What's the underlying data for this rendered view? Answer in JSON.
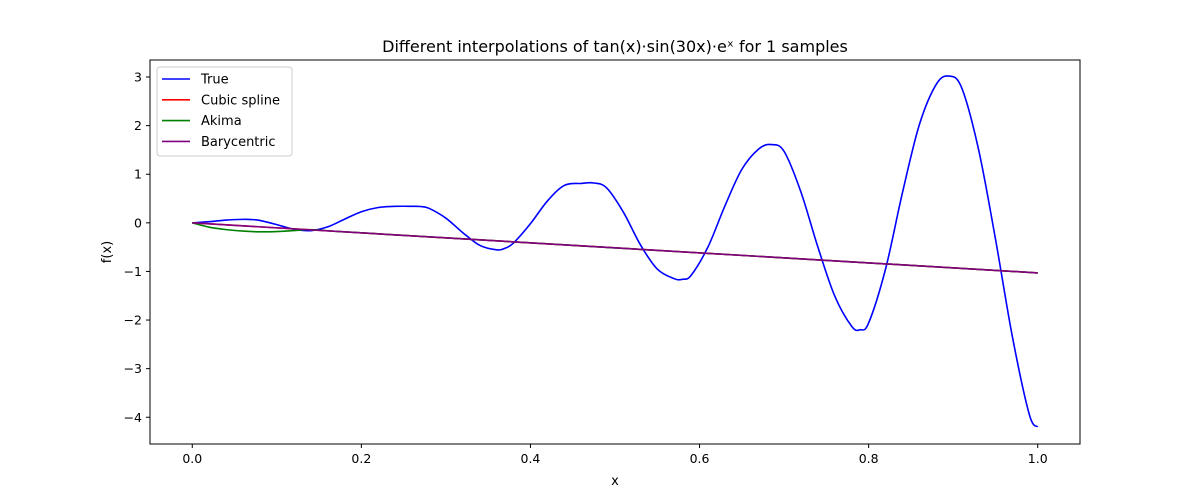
{
  "chart_data": {
    "type": "line",
    "title": "Different interpolations of tan(x)·sin(30x)·eˣ for 1 samples",
    "xlabel": "x",
    "ylabel": "f(x)",
    "xlim": [
      -0.05,
      1.05
    ],
    "ylim": [
      -4.55,
      3.35
    ],
    "xticks": [
      0.0,
      0.2,
      0.4,
      0.6,
      0.8,
      1.0
    ],
    "xtick_labels": [
      "0.0",
      "0.2",
      "0.4",
      "0.6",
      "0.8",
      "1.0"
    ],
    "yticks": [
      3,
      2,
      1,
      0,
      -1,
      -2,
      -3,
      -4
    ],
    "ytick_labels": [
      "3",
      "2",
      "1",
      "0",
      "−1",
      "−2",
      "−3",
      "−4"
    ],
    "grid": false,
    "legend_position": "top-left",
    "series": [
      {
        "name": "True",
        "color": "#0000ff",
        "x": [
          0.0,
          0.02,
          0.04,
          0.06,
          0.07,
          0.08,
          0.1,
          0.12,
          0.14,
          0.16,
          0.18,
          0.2,
          0.22,
          0.24,
          0.26,
          0.27,
          0.28,
          0.3,
          0.32,
          0.34,
          0.36,
          0.37,
          0.38,
          0.4,
          0.42,
          0.44,
          0.46,
          0.475,
          0.49,
          0.51,
          0.53,
          0.55,
          0.57,
          0.58,
          0.59,
          0.61,
          0.63,
          0.65,
          0.67,
          0.685,
          0.7,
          0.72,
          0.74,
          0.76,
          0.78,
          0.79,
          0.8,
          0.82,
          0.84,
          0.86,
          0.88,
          0.895,
          0.91,
          0.93,
          0.95,
          0.97,
          0.99,
          1.0
        ],
        "y": [
          0.0,
          0.023,
          0.057,
          0.071,
          0.068,
          0.049,
          -0.037,
          -0.132,
          -0.161,
          -0.084,
          0.074,
          0.228,
          0.316,
          0.339,
          0.34,
          0.336,
          0.299,
          0.096,
          -0.203,
          -0.463,
          -0.555,
          -0.523,
          -0.414,
          -0.017,
          0.448,
          0.769,
          0.811,
          0.82,
          0.72,
          0.217,
          -0.45,
          -0.951,
          -1.149,
          -1.161,
          -1.08,
          -0.495,
          0.348,
          1.1,
          1.52,
          1.61,
          1.47,
          0.63,
          -0.5,
          -1.51,
          -2.13,
          -2.2,
          -2.06,
          -0.95,
          0.62,
          2.02,
          2.85,
          3.02,
          2.78,
          1.51,
          -0.33,
          -2.34,
          -3.94,
          -4.2
        ]
      },
      {
        "name": "Cubic spline",
        "color": "#ff0000",
        "x": [
          0.0,
          1.0
        ],
        "y": [
          0.0,
          -1.03
        ]
      },
      {
        "name": "Akima",
        "color": "#008000",
        "x": [
          0.0,
          0.02,
          0.04,
          0.06,
          0.08,
          0.1,
          0.12,
          0.14,
          0.17,
          0.2,
          0.4,
          0.6,
          0.8,
          1.0
        ],
        "y": [
          0.0,
          -0.09,
          -0.14,
          -0.17,
          -0.185,
          -0.18,
          -0.16,
          -0.14,
          -0.175,
          -0.206,
          -0.412,
          -0.618,
          -0.824,
          -1.03
        ]
      },
      {
        "name": "Barycentric",
        "color": "#800080",
        "x": [
          0.0,
          1.0
        ],
        "y": [
          0.0,
          -1.03
        ]
      }
    ]
  }
}
